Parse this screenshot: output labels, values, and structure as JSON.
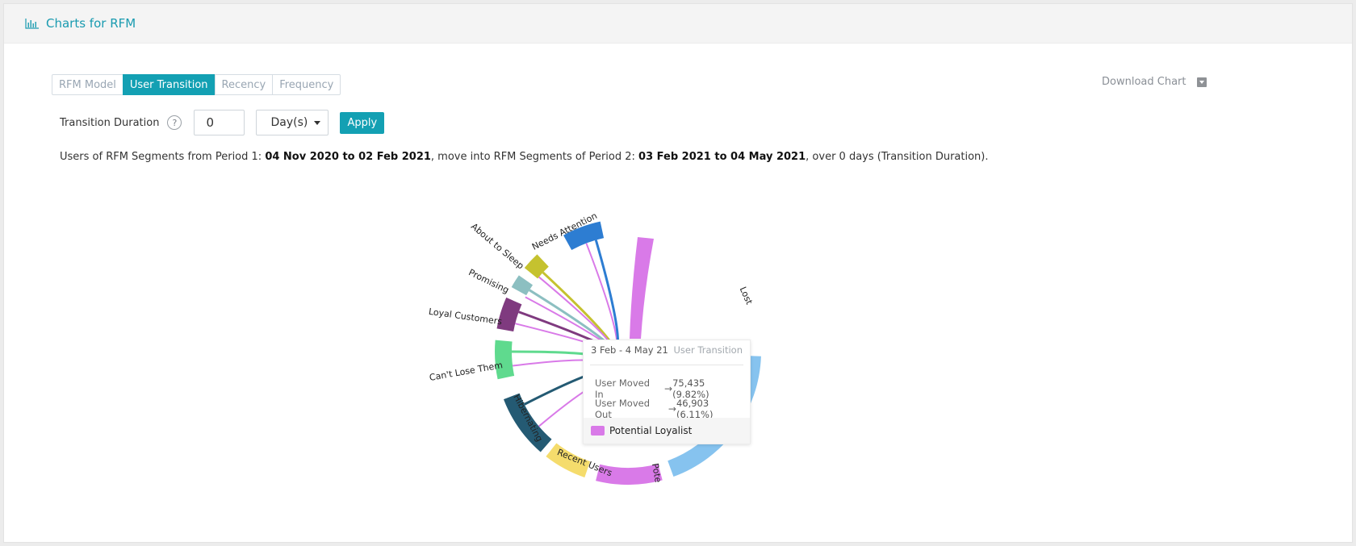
{
  "header": {
    "title": "Charts for RFM",
    "icon": "bar-chart-icon"
  },
  "tabs": [
    {
      "label": "RFM Model",
      "active": false
    },
    {
      "label": "User Transition",
      "active": true
    },
    {
      "label": "Recency",
      "active": false
    },
    {
      "label": "Frequency",
      "active": false
    }
  ],
  "download": {
    "label": "Download Chart",
    "icon": "dropdown-square-icon"
  },
  "duration": {
    "label": "Transition Duration",
    "help": "?",
    "value": "0",
    "unit": "Day(s)",
    "apply_label": "Apply"
  },
  "description": {
    "part1": "Users of RFM Segments from Period 1: ",
    "period1": "04 Nov 2020 to 02 Feb 2021",
    "part2": ", move into RFM Segments of Period 2: ",
    "period2": "03 Feb 2021 to 04 May 2021",
    "part3": ", over 0 days (Transition Duration)."
  },
  "chart_data": {
    "type": "chord",
    "segments": [
      {
        "name": "Needs Attention",
        "color": "#2d7dd2"
      },
      {
        "name": "About to Sleep",
        "color": "#c5c22f"
      },
      {
        "name": "Promising",
        "color": "#8cbfc1"
      },
      {
        "name": "Loyal Customers",
        "color": "#7f3a7f"
      },
      {
        "name": "Can't Lose Them",
        "color": "#5fda8e"
      },
      {
        "name": "Hibernating",
        "color": "#245a73"
      },
      {
        "name": "Recent Users",
        "color": "#f5dc6c"
      },
      {
        "name": "Pote",
        "color": "#d97ae8"
      },
      {
        "name": "Lost",
        "color": "#86c3ef"
      }
    ],
    "tooltip": {
      "range": "3 Feb - 4 May 21",
      "type": "User Transition",
      "moved_in_label": "User Moved In",
      "moved_in_value": "75,435 (9.82%)",
      "moved_out_label": "User Moved Out",
      "moved_out_value": "46,903 (6.11%)",
      "segment": "Potential Loyalist",
      "segment_color": "#d97ae8"
    }
  }
}
